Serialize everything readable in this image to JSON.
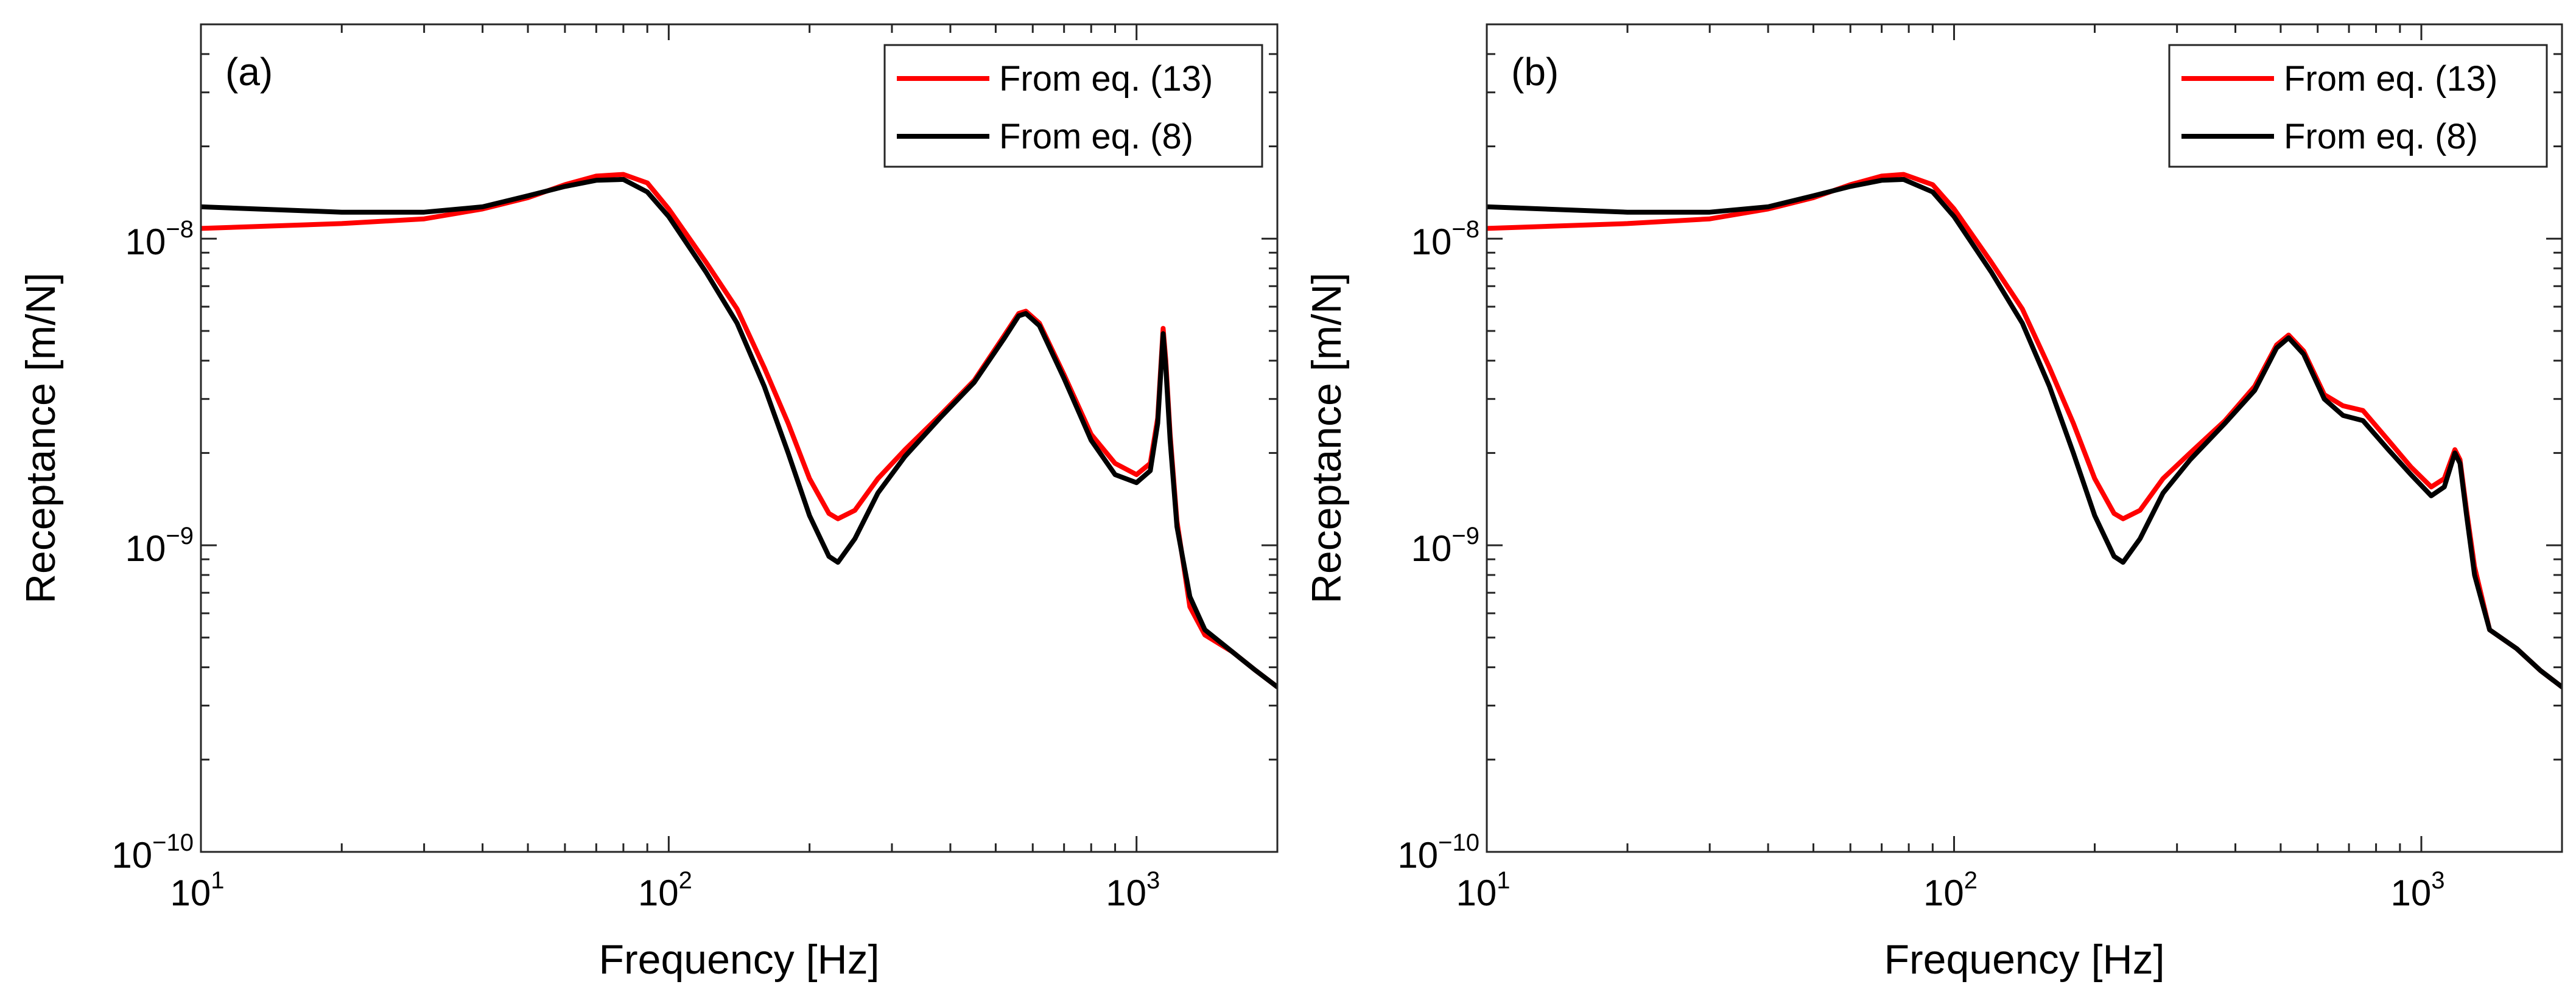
{
  "chart_data": [
    {
      "type": "line",
      "panel_label": "(a)",
      "xlabel": "Frequency [Hz]",
      "ylabel": "Receptance [m/N]",
      "xscale": "log",
      "yscale": "log",
      "xlim": [
        10,
        2000
      ],
      "ylim": [
        1e-10,
        5e-08
      ],
      "x_ticks": [
        {
          "value": 10,
          "base": "10",
          "exp": "1"
        },
        {
          "value": 100,
          "base": "10",
          "exp": "2"
        },
        {
          "value": 1000,
          "base": "10",
          "exp": "3"
        }
      ],
      "y_ticks": [
        {
          "value": 1e-10,
          "base": "10",
          "exp": "−10"
        },
        {
          "value": 1e-09,
          "base": "10",
          "exp": "−9"
        },
        {
          "value": 1e-08,
          "base": "10",
          "exp": "−8"
        }
      ],
      "legend_position": "top-right",
      "series": [
        {
          "name": "From eq. (13)",
          "color": "#ff0000",
          "points": [
            [
              10,
              1.08e-08
            ],
            [
              20,
              1.12e-08
            ],
            [
              30,
              1.16e-08
            ],
            [
              40,
              1.25e-08
            ],
            [
              50,
              1.36e-08
            ],
            [
              60,
              1.5e-08
            ],
            [
              70,
              1.6e-08
            ],
            [
              80,
              1.62e-08
            ],
            [
              90,
              1.52e-08
            ],
            [
              100,
              1.25e-08
            ],
            [
              120,
              8.4e-09
            ],
            [
              140,
              5.9e-09
            ],
            [
              160,
              3.8e-09
            ],
            [
              180,
              2.5e-09
            ],
            [
              200,
              1.65e-09
            ],
            [
              220,
              1.27e-09
            ],
            [
              230,
              1.22e-09
            ],
            [
              250,
              1.3e-09
            ],
            [
              280,
              1.65e-09
            ],
            [
              320,
              2.05e-09
            ],
            [
              380,
              2.65e-09
            ],
            [
              450,
              3.45e-09
            ],
            [
              520,
              4.8e-09
            ],
            [
              560,
              5.7e-09
            ],
            [
              580,
              5.8e-09
            ],
            [
              620,
              5.3e-09
            ],
            [
              700,
              3.6e-09
            ],
            [
              800,
              2.3e-09
            ],
            [
              900,
              1.85e-09
            ],
            [
              1000,
              1.7e-09
            ],
            [
              1070,
              1.85e-09
            ],
            [
              1110,
              2.6e-09
            ],
            [
              1140,
              5.1e-09
            ],
            [
              1155,
              4e-09
            ],
            [
              1180,
              2.3e-09
            ],
            [
              1220,
              1.2e-09
            ],
            [
              1300,
              6.3e-10
            ],
            [
              1400,
              5.1e-10
            ],
            [
              1600,
              4.5e-10
            ],
            [
              1800,
              3.9e-10
            ],
            [
              2000,
              3.45e-10
            ]
          ]
        },
        {
          "name": "From eq. (8)",
          "color": "#000000",
          "points": [
            [
              10,
              1.27e-08
            ],
            [
              20,
              1.22e-08
            ],
            [
              30,
              1.22e-08
            ],
            [
              40,
              1.27e-08
            ],
            [
              50,
              1.38e-08
            ],
            [
              60,
              1.48e-08
            ],
            [
              70,
              1.55e-08
            ],
            [
              80,
              1.56e-08
            ],
            [
              90,
              1.42e-08
            ],
            [
              100,
              1.18e-08
            ],
            [
              120,
              7.8e-09
            ],
            [
              140,
              5.3e-09
            ],
            [
              160,
              3.3e-09
            ],
            [
              180,
              2e-09
            ],
            [
              200,
              1.25e-09
            ],
            [
              220,
              9.2e-10
            ],
            [
              230,
              8.8e-10
            ],
            [
              250,
              1.05e-09
            ],
            [
              280,
              1.48e-09
            ],
            [
              320,
              1.95e-09
            ],
            [
              380,
              2.6e-09
            ],
            [
              450,
              3.4e-09
            ],
            [
              520,
              4.7e-09
            ],
            [
              560,
              5.6e-09
            ],
            [
              580,
              5.7e-09
            ],
            [
              620,
              5.2e-09
            ],
            [
              700,
              3.5e-09
            ],
            [
              800,
              2.2e-09
            ],
            [
              900,
              1.7e-09
            ],
            [
              1000,
              1.6e-09
            ],
            [
              1070,
              1.75e-09
            ],
            [
              1110,
              2.5e-09
            ],
            [
              1140,
              4.9e-09
            ],
            [
              1155,
              3.8e-09
            ],
            [
              1180,
              2.2e-09
            ],
            [
              1220,
              1.15e-09
            ],
            [
              1300,
              6.8e-10
            ],
            [
              1400,
              5.3e-10
            ],
            [
              1600,
              4.5e-10
            ],
            [
              1800,
              3.9e-10
            ],
            [
              2000,
              3.45e-10
            ]
          ]
        }
      ]
    },
    {
      "type": "line",
      "panel_label": "(b)",
      "xlabel": "Frequency [Hz]",
      "ylabel": "Receptance [m/N]",
      "xscale": "log",
      "yscale": "log",
      "xlim": [
        10,
        2000
      ],
      "ylim": [
        1e-10,
        5e-08
      ],
      "x_ticks": [
        {
          "value": 10,
          "base": "10",
          "exp": "1"
        },
        {
          "value": 100,
          "base": "10",
          "exp": "2"
        },
        {
          "value": 1000,
          "base": "10",
          "exp": "3"
        }
      ],
      "y_ticks": [
        {
          "value": 1e-10,
          "base": "10",
          "exp": "−10"
        },
        {
          "value": 1e-09,
          "base": "10",
          "exp": "−9"
        },
        {
          "value": 1e-08,
          "base": "10",
          "exp": "−8"
        }
      ],
      "legend_position": "top-right",
      "series": [
        {
          "name": "From eq. (13)",
          "color": "#ff0000",
          "points": [
            [
              10,
              1.08e-08
            ],
            [
              20,
              1.12e-08
            ],
            [
              30,
              1.16e-08
            ],
            [
              40,
              1.25e-08
            ],
            [
              50,
              1.36e-08
            ],
            [
              60,
              1.5e-08
            ],
            [
              70,
              1.6e-08
            ],
            [
              78,
              1.62e-08
            ],
            [
              90,
              1.5e-08
            ],
            [
              100,
              1.25e-08
            ],
            [
              120,
              8.4e-09
            ],
            [
              140,
              5.9e-09
            ],
            [
              160,
              3.8e-09
            ],
            [
              180,
              2.5e-09
            ],
            [
              200,
              1.65e-09
            ],
            [
              220,
              1.27e-09
            ],
            [
              230,
              1.22e-09
            ],
            [
              250,
              1.3e-09
            ],
            [
              280,
              1.65e-09
            ],
            [
              320,
              2e-09
            ],
            [
              380,
              2.55e-09
            ],
            [
              440,
              3.3e-09
            ],
            [
              490,
              4.5e-09
            ],
            [
              520,
              4.85e-09
            ],
            [
              560,
              4.3e-09
            ],
            [
              620,
              3.1e-09
            ],
            [
              680,
              2.85e-09
            ],
            [
              750,
              2.75e-09
            ],
            [
              850,
              2.2e-09
            ],
            [
              950,
              1.8e-09
            ],
            [
              1050,
              1.55e-09
            ],
            [
              1120,
              1.65e-09
            ],
            [
              1180,
              2.05e-09
            ],
            [
              1210,
              1.9e-09
            ],
            [
              1250,
              1.3e-09
            ],
            [
              1300,
              8.5e-10
            ],
            [
              1400,
              5.3e-10
            ],
            [
              1600,
              4.6e-10
            ],
            [
              1800,
              3.9e-10
            ],
            [
              2000,
              3.45e-10
            ]
          ]
        },
        {
          "name": "From eq. (8)",
          "color": "#000000",
          "points": [
            [
              10,
              1.27e-08
            ],
            [
              20,
              1.22e-08
            ],
            [
              30,
              1.22e-08
            ],
            [
              40,
              1.27e-08
            ],
            [
              50,
              1.38e-08
            ],
            [
              60,
              1.48e-08
            ],
            [
              70,
              1.55e-08
            ],
            [
              78,
              1.56e-08
            ],
            [
              90,
              1.42e-08
            ],
            [
              100,
              1.18e-08
            ],
            [
              120,
              7.8e-09
            ],
            [
              140,
              5.3e-09
            ],
            [
              160,
              3.3e-09
            ],
            [
              180,
              2e-09
            ],
            [
              200,
              1.25e-09
            ],
            [
              220,
              9.2e-10
            ],
            [
              230,
              8.8e-10
            ],
            [
              250,
              1.05e-09
            ],
            [
              280,
              1.48e-09
            ],
            [
              320,
              1.9e-09
            ],
            [
              380,
              2.5e-09
            ],
            [
              440,
              3.2e-09
            ],
            [
              490,
              4.4e-09
            ],
            [
              520,
              4.75e-09
            ],
            [
              560,
              4.2e-09
            ],
            [
              620,
              3e-09
            ],
            [
              680,
              2.65e-09
            ],
            [
              750,
              2.55e-09
            ],
            [
              850,
              2.05e-09
            ],
            [
              950,
              1.7e-09
            ],
            [
              1050,
              1.45e-09
            ],
            [
              1120,
              1.55e-09
            ],
            [
              1180,
              2e-09
            ],
            [
              1210,
              1.85e-09
            ],
            [
              1250,
              1.25e-09
            ],
            [
              1300,
              8e-10
            ],
            [
              1400,
              5.3e-10
            ],
            [
              1600,
              4.6e-10
            ],
            [
              1800,
              3.9e-10
            ],
            [
              2000,
              3.45e-10
            ]
          ]
        }
      ]
    }
  ]
}
